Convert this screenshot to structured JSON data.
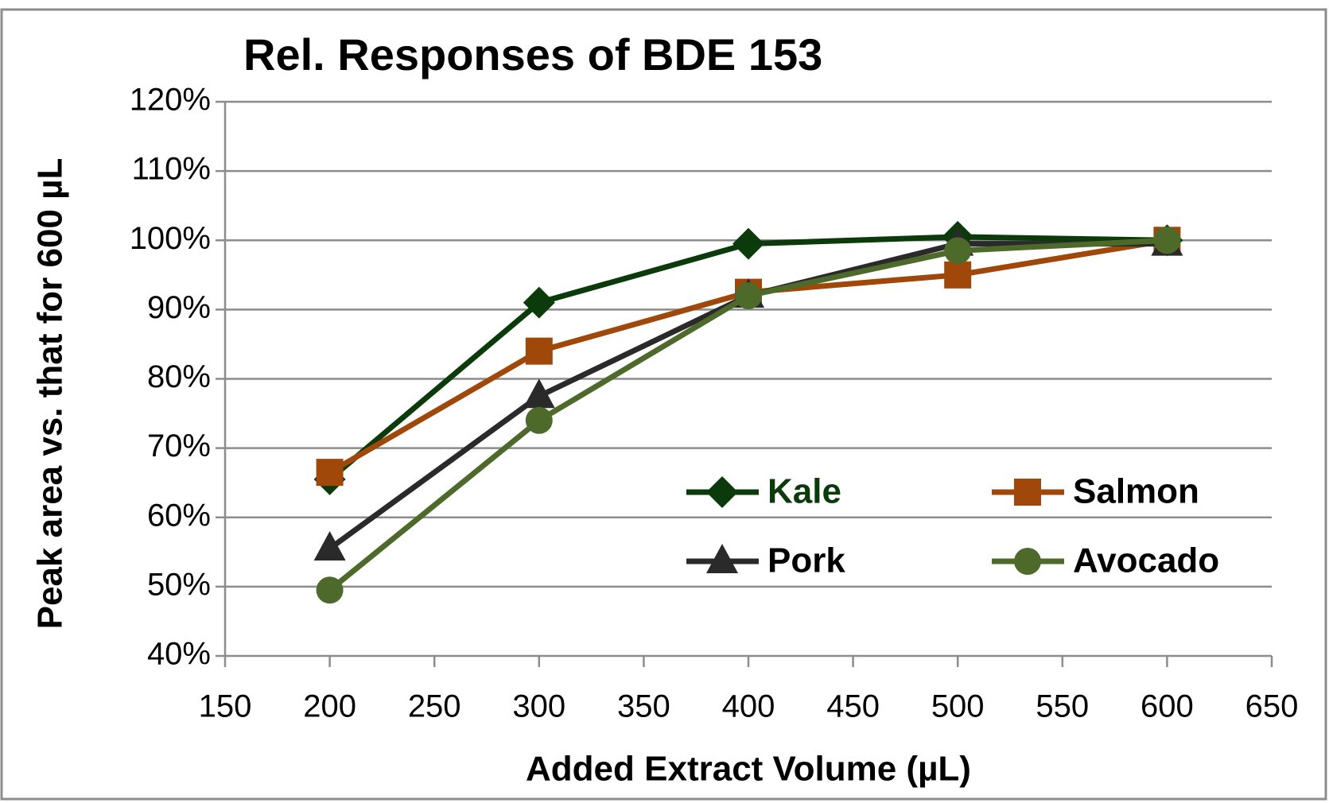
{
  "chart_data": {
    "type": "line",
    "title": "Rel. Responses of BDE 153",
    "x_label": "Added Extract Volume (µL)",
    "y_label": "Peak area vs. that for 600 µL",
    "x": [
      200,
      300,
      400,
      500,
      600
    ],
    "series": [
      {
        "name": "Kale",
        "color": "#0b3a0b",
        "marker": "diamond",
        "values": [
          65.5,
          91,
          99.5,
          100.5,
          100
        ]
      },
      {
        "name": "Salmon",
        "color": "#a0480a",
        "marker": "square",
        "values": [
          66.5,
          84,
          92.5,
          95,
          100
        ]
      },
      {
        "name": "Pork",
        "color": "#2a2a2a",
        "marker": "triangle",
        "values": [
          55.5,
          77.5,
          92,
          99.5,
          99.5
        ]
      },
      {
        "name": "Avocado",
        "color": "#4e6a2a",
        "marker": "circle",
        "values": [
          49.5,
          74,
          92,
          98.5,
          100
        ]
      }
    ],
    "xlim": [
      150,
      650
    ],
    "xticks": [
      150,
      200,
      250,
      300,
      350,
      400,
      450,
      500,
      550,
      600,
      650
    ],
    "ylim": [
      40,
      120
    ],
    "yticks": [
      {
        "value": 40,
        "label": "40%"
      },
      {
        "value": 50,
        "label": "50%"
      },
      {
        "value": 60,
        "label": "60%"
      },
      {
        "value": 70,
        "label": "70%"
      },
      {
        "value": 80,
        "label": "80%"
      },
      {
        "value": 90,
        "label": "90%"
      },
      {
        "value": 100,
        "label": "100%"
      },
      {
        "value": 110,
        "label": "110%"
      },
      {
        "value": 120,
        "label": "120%"
      }
    ],
    "grid": true,
    "legend": "lower right"
  }
}
